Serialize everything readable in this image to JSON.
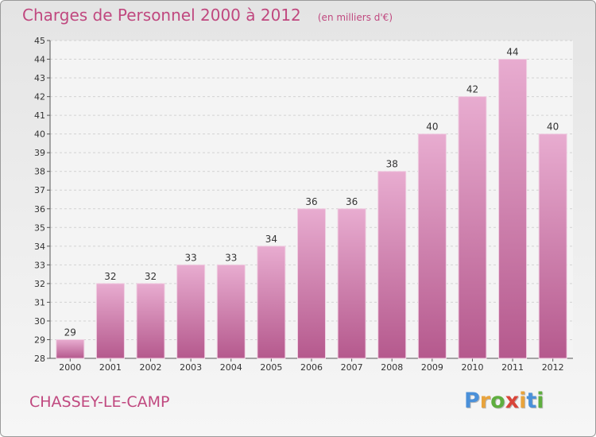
{
  "chart_data": {
    "type": "bar",
    "title": "Charges de Personnel 2000 à 2012",
    "subtitle": "(en milliers d'€)",
    "xlabel": "",
    "ylabel": "",
    "ylim": [
      28,
      45
    ],
    "yticks": [
      28,
      29,
      30,
      31,
      32,
      33,
      34,
      35,
      36,
      37,
      38,
      39,
      40,
      41,
      42,
      43,
      44,
      45
    ],
    "categories": [
      "2000",
      "2001",
      "2002",
      "2003",
      "2004",
      "2005",
      "2006",
      "2007",
      "2008",
      "2009",
      "2010",
      "2011",
      "2012"
    ],
    "values": [
      29,
      32,
      32,
      33,
      33,
      34,
      36,
      36,
      38,
      40,
      42,
      44,
      40
    ],
    "grid": true,
    "colors": {
      "bar": "#c96fa2",
      "bar_light": "#e7a9cd",
      "bar_dark": "#b9598f",
      "text": "#c0487f"
    }
  },
  "footer": {
    "place": "CHASSEY-LE-CAMP",
    "brand": "Proxiti",
    "brand_colors": [
      "#4a90d9",
      "#e8a33c",
      "#5fae3f",
      "#d9453a",
      "#e8a33c",
      "#4a90d9",
      "#5fae3f"
    ]
  }
}
